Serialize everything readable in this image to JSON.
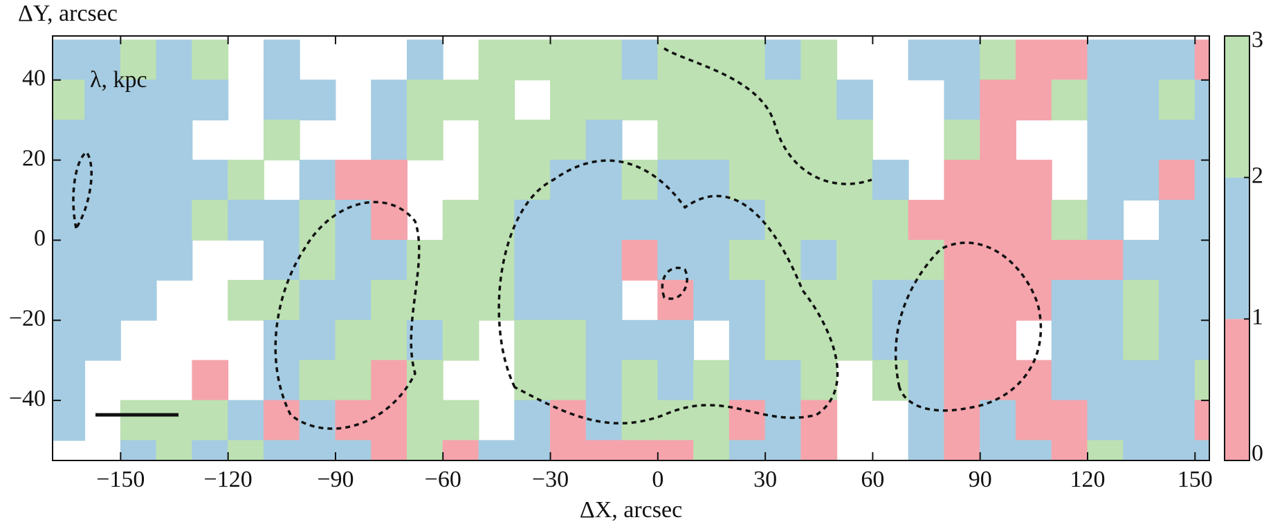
{
  "chart_data": {
    "type": "contour",
    "xlabel": "ΔX, arcsec",
    "ylabel": "ΔY, arcsec",
    "annotation": "λ, kpc",
    "xlim": [
      -169,
      154
    ],
    "ylim": [
      -55,
      51
    ],
    "xticks": [
      {
        "value": -150,
        "label": "−150"
      },
      {
        "value": -120,
        "label": "−120"
      },
      {
        "value": -90,
        "label": "−90"
      },
      {
        "value": -60,
        "label": "−60"
      },
      {
        "value": -30,
        "label": "−30"
      },
      0,
      30,
      60,
      90,
      120,
      150
    ],
    "yticks": [
      {
        "value": -40,
        "label": "−40"
      },
      {
        "value": -20,
        "label": "−20"
      },
      0,
      20,
      40
    ],
    "x": [
      -165,
      -155,
      -145,
      -135,
      -125,
      -115,
      -105,
      -95,
      -85,
      -75,
      -65,
      -55,
      -45,
      -35,
      -25,
      -15,
      -5,
      5,
      15,
      25,
      35,
      45,
      55,
      65,
      75,
      85,
      95,
      105,
      115,
      125,
      135,
      145,
      155
    ],
    "y": [
      45,
      35,
      25,
      15,
      5,
      -5,
      -15,
      -25,
      -35,
      -45,
      -55
    ],
    "z": [
      [
        1.5,
        1.5,
        2.5,
        1.5,
        2.5,
        null,
        1.5,
        null,
        null,
        null,
        1.5,
        null,
        2.5,
        2.5,
        2.5,
        2.5,
        1.5,
        2.5,
        2.5,
        2.5,
        1.5,
        2.5,
        null,
        null,
        1.5,
        1.5,
        2.5,
        0.5,
        0.5,
        1.5,
        1.5,
        1.5,
        0.5
      ],
      [
        2.5,
        1.5,
        1.5,
        1.5,
        1.5,
        null,
        1.5,
        1.5,
        null,
        1.5,
        2.5,
        2.5,
        2.5,
        null,
        2.5,
        2.5,
        2.5,
        2.5,
        2.5,
        2.5,
        2.5,
        2.5,
        1.5,
        null,
        null,
        1.5,
        0.5,
        0.5,
        2.5,
        1.5,
        1.5,
        2.5,
        1.5
      ],
      [
        1.5,
        1.5,
        1.5,
        1.5,
        null,
        null,
        2.5,
        null,
        null,
        1.5,
        2.5,
        null,
        2.5,
        2.5,
        2.5,
        1.5,
        null,
        2.5,
        2.5,
        2.5,
        2.5,
        2.5,
        2.5,
        null,
        null,
        2.5,
        0.5,
        null,
        null,
        1.5,
        1.5,
        1.5,
        1.5
      ],
      [
        1.5,
        1.5,
        1.5,
        1.5,
        1.5,
        2.5,
        null,
        1.5,
        0.5,
        0.5,
        null,
        null,
        2.5,
        2.5,
        1.5,
        1.5,
        2.5,
        1.5,
        1.5,
        2.5,
        2.5,
        2.5,
        2.5,
        1.5,
        null,
        0.5,
        0.5,
        0.5,
        null,
        1.5,
        1.5,
        0.5,
        1.5
      ],
      [
        1.5,
        1.5,
        1.5,
        1.5,
        2.5,
        1.5,
        1.5,
        2.5,
        1.5,
        0.5,
        null,
        2.5,
        2.5,
        1.5,
        1.5,
        1.5,
        1.5,
        1.5,
        1.5,
        1.5,
        2.5,
        2.5,
        2.5,
        2.5,
        0.5,
        0.5,
        0.5,
        0.5,
        2.5,
        1.5,
        null,
        1.5,
        1.5
      ],
      [
        1.5,
        1.5,
        1.5,
        1.5,
        null,
        null,
        1.5,
        2.5,
        1.5,
        1.5,
        2.5,
        2.5,
        2.5,
        1.5,
        1.5,
        1.5,
        0.5,
        1.5,
        1.5,
        2.5,
        2.5,
        1.5,
        2.5,
        2.5,
        2.5,
        0.5,
        0.5,
        0.5,
        0.5,
        0.5,
        1.5,
        1.5,
        1.5
      ],
      [
        1.5,
        1.5,
        1.5,
        null,
        null,
        2.5,
        2.5,
        1.5,
        1.5,
        2.5,
        2.5,
        2.5,
        2.5,
        1.5,
        1.5,
        1.5,
        null,
        0.5,
        1.5,
        1.5,
        2.5,
        2.5,
        2.5,
        1.5,
        1.5,
        0.5,
        0.5,
        0.5,
        1.5,
        1.5,
        2.5,
        1.5,
        1.5
      ],
      [
        1.5,
        1.5,
        null,
        null,
        null,
        null,
        1.5,
        1.5,
        2.5,
        2.5,
        1.5,
        2.5,
        null,
        2.5,
        2.5,
        1.5,
        1.5,
        1.5,
        null,
        1.5,
        2.5,
        2.5,
        2.5,
        1.5,
        1.5,
        0.5,
        0.5,
        null,
        1.5,
        1.5,
        2.5,
        1.5,
        1.5
      ],
      [
        1.5,
        null,
        null,
        null,
        0.5,
        null,
        1.5,
        2.5,
        2.5,
        0.5,
        2.5,
        null,
        null,
        2.5,
        2.5,
        1.5,
        2.5,
        1.5,
        2.5,
        1.5,
        1.5,
        2.5,
        null,
        2.5,
        1.5,
        0.5,
        0.5,
        0.5,
        1.5,
        1.5,
        1.5,
        1.5,
        2.5
      ],
      [
        1.5,
        null,
        2.5,
        2.5,
        2.5,
        1.5,
        0.5,
        1.5,
        0.5,
        0.5,
        2.5,
        2.5,
        null,
        1.5,
        0.5,
        1.5,
        2.5,
        2.5,
        2.5,
        0.5,
        1.5,
        0.5,
        null,
        null,
        1.5,
        0.5,
        1.5,
        0.5,
        0.5,
        1.5,
        1.5,
        1.5,
        0.5
      ],
      [
        null,
        null,
        1.5,
        2.5,
        1.5,
        2.5,
        1.5,
        1.5,
        1.5,
        0.5,
        2.5,
        0.5,
        1.5,
        1.5,
        0.5,
        0.5,
        0.5,
        0.5,
        2.5,
        1.5,
        1.5,
        0.5,
        null,
        null,
        1.5,
        0.5,
        1.5,
        1.5,
        0.5,
        2.5,
        1.5,
        1.5,
        1.5
      ]
    ],
    "levels": [
      0,
      1,
      2,
      3
    ],
    "colors": [
      "#f5a4ac",
      "#a5cce2",
      "#bde1b2"
    ]
  }
}
